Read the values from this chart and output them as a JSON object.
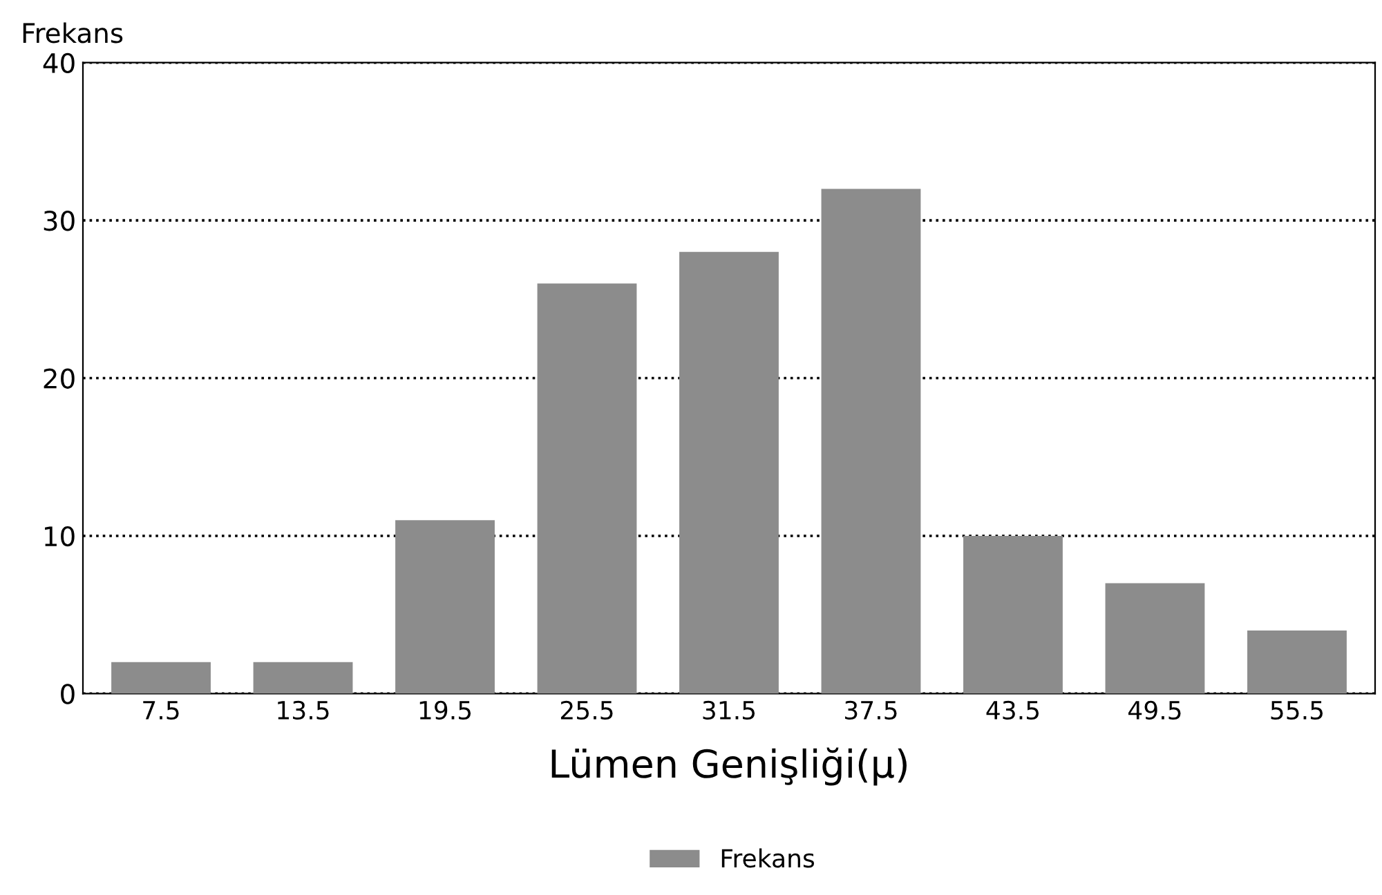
{
  "chart_data": {
    "type": "bar",
    "ylabel": "Frekans",
    "xlabel": "Lümen Genişliği(µ)",
    "categories": [
      "7.5",
      "13.5",
      "19.5",
      "25.5",
      "31.5",
      "37.5",
      "43.5",
      "49.5",
      "55.5"
    ],
    "series": [
      {
        "name": "Frekans",
        "color": "#8c8c8c",
        "values": [
          2,
          2,
          11,
          26,
          28,
          32,
          10,
          7,
          4
        ]
      }
    ],
    "ylim": [
      0,
      40
    ],
    "yticks": [
      0,
      10,
      20,
      30,
      40
    ],
    "grid": "y",
    "legend": "bottom"
  }
}
